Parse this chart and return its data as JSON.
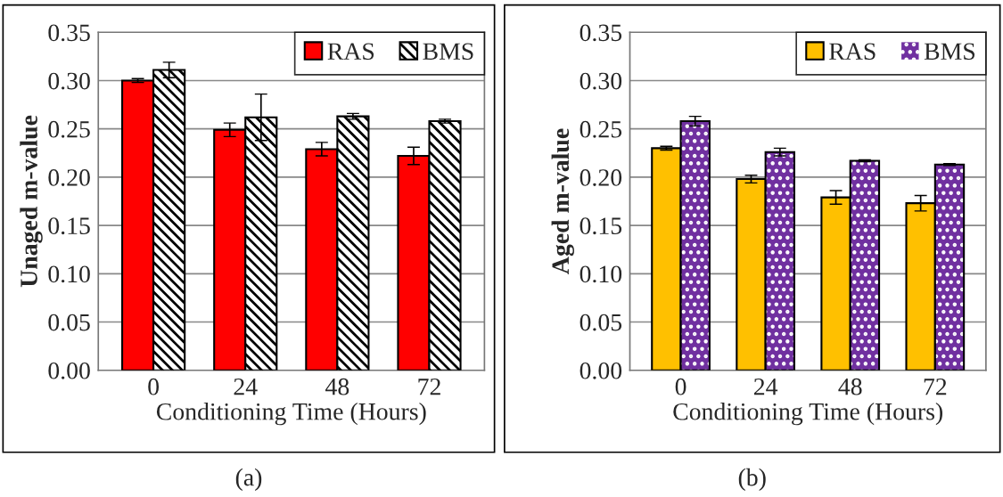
{
  "chart_data": [
    {
      "type": "bar",
      "categories": [
        "0",
        "24",
        "48",
        "72"
      ],
      "xlabel": "Conditioning Time (Hours)",
      "ylabel": "Unaged m-value",
      "series": [
        {
          "name": "RAS",
          "color": "#ff0000",
          "values": [
            0.3,
            0.249,
            0.229,
            0.222
          ],
          "errors": [
            0.002,
            0.007,
            0.007,
            0.009
          ]
        },
        {
          "name": "BMS",
          "color": "#000000",
          "values": [
            0.311,
            0.262,
            0.263,
            0.258
          ],
          "errors": [
            0.008,
            0.024,
            0.003,
            0.002
          ]
        }
      ],
      "ylim": [
        0,
        0.35
      ],
      "yticks": [
        {
          "value": 0,
          "label": "0.00"
        },
        {
          "value": 0.05,
          "label": "0.05"
        },
        {
          "value": 0.1,
          "label": "0.10"
        },
        {
          "value": 0.15,
          "label": "0.15"
        },
        {
          "value": 0.2,
          "label": "0.20"
        },
        {
          "value": 0.25,
          "label": "0.25"
        },
        {
          "value": 0.3,
          "label": "0.30"
        },
        {
          "value": 0.35,
          "label": "0.35"
        }
      ],
      "grid": "y",
      "legend": "top right",
      "annotations": [
        "(a)"
      ]
    },
    {
      "type": "bar",
      "categories": [
        "0",
        "24",
        "48",
        "72"
      ],
      "xlabel": "Conditioning Time (Hours)",
      "ylabel": "Aged m-value",
      "series": [
        {
          "name": "RAS",
          "color": "#ffc000",
          "values": [
            0.23,
            0.198,
            0.179,
            0.173
          ],
          "errors": [
            0.002,
            0.004,
            0.007,
            0.008
          ]
        },
        {
          "name": "BMS",
          "color": "#7030a0",
          "values": [
            0.258,
            0.226,
            0.217,
            0.213
          ],
          "errors": [
            0.005,
            0.004,
            0.001,
            0.001
          ]
        }
      ],
      "ylim": [
        0,
        0.35
      ],
      "yticks": [
        {
          "value": 0,
          "label": "0.00"
        },
        {
          "value": 0.05,
          "label": "0.05"
        },
        {
          "value": 0.1,
          "label": "0.10"
        },
        {
          "value": 0.15,
          "label": "0.15"
        },
        {
          "value": 0.2,
          "label": "0.20"
        },
        {
          "value": 0.25,
          "label": "0.25"
        },
        {
          "value": 0.3,
          "label": "0.30"
        },
        {
          "value": 0.35,
          "label": "0.35"
        }
      ],
      "grid": "y",
      "legend": "top right",
      "annotations": [
        "(b)"
      ]
    }
  ]
}
